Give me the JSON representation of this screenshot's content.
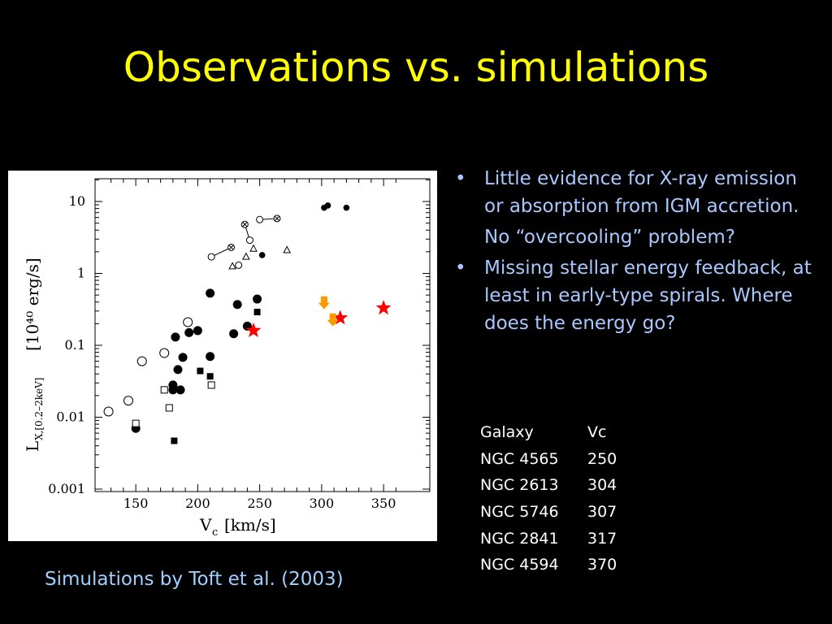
{
  "title": "Observations vs. simulations",
  "caption": "Simulations by Toft et al. (2003)",
  "bullets": [
    {
      "text": "Little evidence for X-ray emission or absorption from IGM accretion.",
      "sub": "No “overcooling” problem?"
    },
    {
      "text": "Missing stellar energy feedback, at least in early-type spirals.  Where does the energy go?"
    }
  ],
  "galaxy_table": {
    "headers": [
      "Galaxy",
      "Vc"
    ],
    "rows": [
      [
        "NGC 4565",
        "250"
      ],
      [
        "NGC 2613",
        "304"
      ],
      [
        "NGC 5746",
        "307"
      ],
      [
        "NGC 2841",
        "317"
      ],
      [
        "NGC 4594",
        "370"
      ]
    ]
  },
  "colors": {
    "background": "#000000",
    "title": "#ffff00",
    "text": "#a9c8ff",
    "star": "#ff0000",
    "arrow": "#ff9900"
  },
  "chart_data": {
    "type": "scatter",
    "xlabel": "V",
    "xlabel_sub": "c",
    "xlabel_unit": "[km/s]",
    "ylabel": "L",
    "ylabel_sub": "X,[0.2–2keV]",
    "ylabel_unit": "[10⁴⁰ erg/s]",
    "xlim": [
      125,
      360
    ],
    "ylim": [
      0.001,
      20
    ],
    "yscale": "log",
    "xticks": [
      150,
      200,
      250,
      300,
      350
    ],
    "xtick_labels": [
      "150",
      "200",
      "250",
      "300",
      "350"
    ],
    "yticks": [
      0.001,
      0.01,
      0.1,
      1,
      10
    ],
    "ytick_labels": [
      "0.001",
      "0.01",
      "0.1",
      "1",
      "10"
    ],
    "grid": false,
    "series": [
      {
        "marker": "filled-circle-large",
        "points": [
          [
            150,
            0.007
          ],
          [
            180,
            0.028
          ],
          [
            180,
            0.024
          ],
          [
            182,
            0.13
          ],
          [
            184,
            0.046
          ],
          [
            186,
            0.024
          ],
          [
            188,
            0.068
          ],
          [
            193,
            0.15
          ],
          [
            200,
            0.16
          ],
          [
            210,
            0.07
          ],
          [
            210,
            0.53
          ],
          [
            229,
            0.145
          ],
          [
            232,
            0.37
          ],
          [
            240,
            0.185
          ],
          [
            248,
            0.44
          ]
        ]
      },
      {
        "marker": "filled-circle-small",
        "points": [
          [
            252,
            1.8
          ],
          [
            302,
            8.2
          ],
          [
            305,
            8.8
          ],
          [
            320,
            8.2
          ]
        ]
      },
      {
        "marker": "filled-square",
        "points": [
          [
            181,
            0.0047
          ],
          [
            202,
            0.044
          ],
          [
            210,
            0.037
          ],
          [
            248,
            0.29
          ]
        ]
      },
      {
        "marker": "open-square",
        "points": [
          [
            150,
            0.0082
          ],
          [
            173,
            0.024
          ],
          [
            177,
            0.0135
          ],
          [
            211,
            0.028
          ]
        ]
      },
      {
        "marker": "open-circle-large",
        "points": [
          [
            128,
            0.012
          ],
          [
            144,
            0.017
          ],
          [
            155,
            0.06
          ],
          [
            173,
            0.078
          ],
          [
            192,
            0.21
          ]
        ]
      },
      {
        "marker": "open-circle-small",
        "points": [
          [
            211,
            1.7
          ],
          [
            233,
            1.3
          ],
          [
            242,
            2.9
          ],
          [
            250,
            5.6
          ]
        ]
      },
      {
        "marker": "open-triangle",
        "points": [
          [
            228,
            1.25
          ],
          [
            239,
            1.7
          ],
          [
            245,
            2.2
          ],
          [
            272,
            2.1
          ]
        ]
      },
      {
        "marker": "circle-cross",
        "points": [
          [
            227,
            2.3
          ],
          [
            238,
            4.8
          ],
          [
            264,
            5.8
          ]
        ]
      },
      {
        "marker": "star",
        "points": [
          [
            245,
            0.16
          ],
          [
            315,
            0.24
          ],
          [
            350,
            0.33
          ]
        ]
      },
      {
        "marker": "down-arrow",
        "points": [
          [
            302,
            0.38
          ],
          [
            309,
            0.22
          ]
        ]
      }
    ],
    "connected_pairs": [
      [
        [
          211,
          1.7
        ],
        [
          227,
          2.3
        ]
      ],
      [
        [
          238,
          4.8
        ],
        [
          242,
          2.9
        ]
      ],
      [
        [
          250,
          5.6
        ],
        [
          264,
          5.8
        ]
      ]
    ]
  }
}
